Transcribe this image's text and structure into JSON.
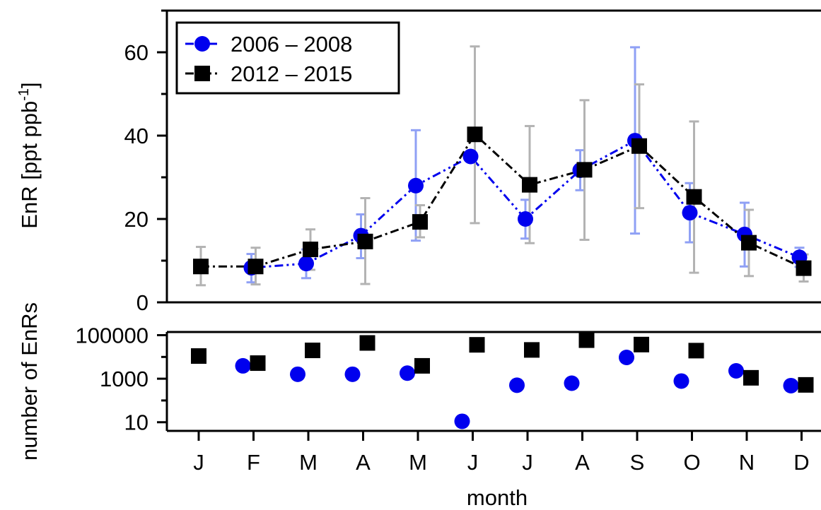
{
  "chart_data": [
    {
      "type": "line",
      "ylabel": "EnR [ppt ppb",
      "ylabel_sup": "-1",
      "ylabel_close": "]",
      "ylim": [
        0,
        70
      ],
      "yticks": [
        0,
        20,
        40,
        60
      ],
      "ytick_labels": [
        "0",
        "20",
        "40",
        "60"
      ],
      "categories": [
        "J",
        "F",
        "M",
        "A",
        "M",
        "J",
        "J",
        "A",
        "S",
        "O",
        "N",
        "D"
      ],
      "legend_position": "top-left",
      "series": [
        {
          "name": "2006 – 2008",
          "color": "#0000ee",
          "error_color": "#8fa0f5",
          "marker": "circle",
          "line_style": "dash-dot-dot",
          "x": [
            2,
            3,
            4,
            5,
            6,
            7,
            8,
            9,
            10,
            11,
            12
          ],
          "values": [
            8.3,
            9.3,
            16.0,
            28.0,
            35.0,
            20.0,
            31.7,
            38.8,
            21.5,
            16.3,
            10.8
          ],
          "err_low": [
            4.8,
            5.8,
            10.6,
            14.8,
            35.0,
            15.3,
            26.9,
            16.5,
            14.4,
            8.6,
            8.5
          ],
          "err_high": [
            11.6,
            12.7,
            21.1,
            41.3,
            35.0,
            24.6,
            36.5,
            61.2,
            28.6,
            23.9,
            13.1
          ]
        },
        {
          "name": "2012 – 2015",
          "color": "#000000",
          "error_color": "#b3b3b3",
          "marker": "square",
          "line_style": "dash-dot",
          "x": [
            1,
            2,
            3,
            4,
            5,
            6,
            7,
            8,
            9,
            10,
            11,
            12
          ],
          "values": [
            8.6,
            8.6,
            12.7,
            14.6,
            19.3,
            40.3,
            28.2,
            31.8,
            37.5,
            25.3,
            14.3,
            8.2
          ],
          "err_low": [
            4.1,
            4.3,
            7.8,
            4.4,
            15.6,
            19.0,
            14.2,
            15.0,
            22.6,
            7.1,
            6.3,
            5.0
          ],
          "err_high": [
            13.3,
            13.1,
            17.5,
            25.0,
            23.3,
            61.4,
            42.3,
            48.5,
            52.3,
            43.4,
            22.2,
            11.5
          ]
        }
      ]
    },
    {
      "type": "scatter",
      "ylabel": "number of EnRs",
      "xlabel": "month",
      "yscale": "log",
      "ylim": [
        4,
        140000
      ],
      "yticks": [
        10,
        1000,
        100000
      ],
      "ytick_labels": [
        "10",
        "1000",
        "100000"
      ],
      "categories": [
        "J",
        "F",
        "M",
        "A",
        "M",
        "J",
        "J",
        "A",
        "S",
        "O",
        "N",
        "D"
      ],
      "series": [
        {
          "name": "2006 – 2008",
          "color": "#0000ee",
          "marker": "circle",
          "x": [
            2,
            3,
            4,
            5,
            6,
            7,
            8,
            9,
            10,
            11,
            12
          ],
          "values": [
            3900,
            1600,
            1600,
            1800,
            11,
            500,
            620,
            9500,
            780,
            2300,
            480
          ]
        },
        {
          "name": "2012 – 2015",
          "color": "#000000",
          "marker": "square",
          "x": [
            1,
            2,
            3,
            4,
            5,
            6,
            7,
            8,
            9,
            10,
            11,
            12
          ],
          "values": [
            11000,
            5200,
            20000,
            44000,
            3900,
            36000,
            21000,
            59000,
            37000,
            19500,
            1100,
            520
          ]
        }
      ]
    }
  ]
}
